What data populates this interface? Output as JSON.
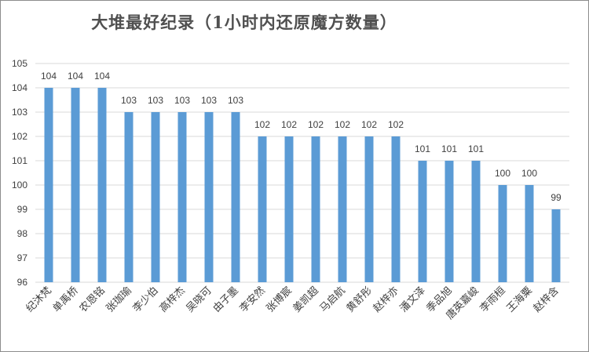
{
  "chart_data": {
    "type": "bar",
    "title": "大堆最好纪录（1小时内还原魔方数量）",
    "categories": [
      "纪沐梵",
      "单禹桥",
      "农恩铭",
      "张珈瑜",
      "李少伯",
      "高梓杰",
      "吴晓可",
      "由子墨",
      "李安然",
      "张博宸",
      "姜凯超",
      "马启航",
      "黄舒彤",
      "赵梓亦",
      "潘文泽",
      "季品旭",
      "唐英嘉峻",
      "李雨桓",
      "王海粟",
      "赵梓含"
    ],
    "values": [
      104,
      104,
      104,
      103,
      103,
      103,
      103,
      103,
      102,
      102,
      102,
      102,
      102,
      102,
      101,
      101,
      101,
      100,
      100,
      99
    ],
    "ylim": [
      96,
      105
    ],
    "yticks": [
      96,
      97,
      98,
      99,
      100,
      101,
      102,
      103,
      104,
      105
    ],
    "grid": true,
    "color": "#5b9bd5"
  }
}
